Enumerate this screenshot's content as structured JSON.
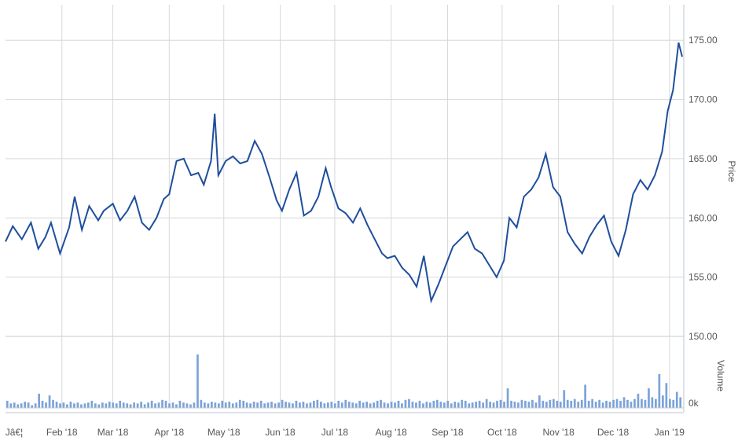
{
  "colors": {
    "line": "#1f4e9c",
    "volume": "#7ba3d9",
    "grid": "#d8d8d8",
    "axis": "#b8c6d6"
  },
  "chart_data": [
    {
      "type": "line",
      "ylabel": "Price",
      "ylim": [
        150,
        178
      ],
      "y_ticks": [
        "150.00",
        "155.00",
        "160.00",
        "165.00",
        "170.00",
        "175.00"
      ],
      "x_tick_labels": [
        "Jâ€¦",
        "Feb '18",
        "Mar '18",
        "Apr '18",
        "May '18",
        "Jun '18",
        "Jul '18",
        "Aug '18",
        "Sep '18",
        "Oct '18",
        "Nov '18",
        "Dec '18",
        "Jan '19"
      ],
      "grid": true,
      "series": [
        {
          "x": [
            "2018-01-01",
            "2018-01-05",
            "2018-01-10",
            "2018-01-15",
            "2018-01-19",
            "2018-01-23",
            "2018-01-26",
            "2018-01-31",
            "2018-02-05",
            "2018-02-08",
            "2018-02-12",
            "2018-02-16",
            "2018-02-21",
            "2018-02-24",
            "2018-03-01",
            "2018-03-05",
            "2018-03-09",
            "2018-03-13",
            "2018-03-17",
            "2018-03-21",
            "2018-03-25",
            "2018-03-29",
            "2018-04-01",
            "2018-04-05",
            "2018-04-09",
            "2018-04-13",
            "2018-04-17",
            "2018-04-20",
            "2018-04-24",
            "2018-04-26",
            "2018-04-28",
            "2018-05-02",
            "2018-05-06",
            "2018-05-10",
            "2018-05-14",
            "2018-05-18",
            "2018-05-22",
            "2018-05-26",
            "2018-05-30",
            "2018-06-02",
            "2018-06-06",
            "2018-06-10",
            "2018-06-14",
            "2018-06-18",
            "2018-06-22",
            "2018-06-26",
            "2018-06-29",
            "2018-07-03",
            "2018-07-07",
            "2018-07-11",
            "2018-07-15",
            "2018-07-19",
            "2018-07-23",
            "2018-07-27",
            "2018-07-30",
            "2018-08-03",
            "2018-08-07",
            "2018-08-11",
            "2018-08-15",
            "2018-08-19",
            "2018-08-23",
            "2018-08-27",
            "2018-08-31",
            "2018-09-04",
            "2018-09-08",
            "2018-09-12",
            "2018-09-16",
            "2018-09-20",
            "2018-09-24",
            "2018-09-28",
            "2018-10-02",
            "2018-10-05",
            "2018-10-09",
            "2018-10-13",
            "2018-10-17",
            "2018-10-21",
            "2018-10-25",
            "2018-10-29",
            "2018-11-02",
            "2018-11-06",
            "2018-11-10",
            "2018-11-14",
            "2018-11-18",
            "2018-11-22",
            "2018-11-26",
            "2018-11-30",
            "2018-12-04",
            "2018-12-08",
            "2018-12-12",
            "2018-12-16",
            "2018-12-20",
            "2018-12-24",
            "2018-12-28",
            "2018-12-31",
            "2019-01-03",
            "2019-01-06",
            "2019-01-08"
          ],
          "values": [
            158.0,
            159.3,
            158.2,
            159.6,
            157.4,
            158.4,
            159.6,
            157.0,
            159.2,
            161.8,
            159.0,
            161.0,
            159.8,
            160.6,
            161.2,
            159.8,
            160.6,
            161.8,
            159.6,
            159.0,
            160.0,
            161.6,
            162.0,
            164.8,
            165.0,
            163.6,
            163.8,
            162.8,
            164.8,
            168.8,
            163.6,
            164.8,
            165.2,
            164.6,
            164.8,
            166.5,
            165.4,
            163.5,
            161.5,
            160.6,
            162.4,
            163.8,
            160.2,
            160.6,
            161.8,
            164.2,
            162.6,
            160.8,
            160.4,
            159.6,
            160.8,
            159.4,
            158.2,
            157.0,
            156.6,
            156.8,
            155.8,
            155.2,
            154.2,
            156.8,
            153.0,
            154.4,
            156.0,
            157.6,
            158.2,
            158.8,
            157.4,
            157.0,
            156.0,
            155.0,
            156.4,
            160.0,
            159.2,
            161.8,
            162.4,
            163.4,
            165.4,
            162.6,
            161.8,
            158.8,
            157.8,
            157.0,
            158.4,
            159.4,
            160.2,
            158.0,
            156.8,
            159.0,
            162.0,
            163.2,
            162.4,
            163.6,
            165.6,
            169.0,
            170.8,
            174.8,
            173.6
          ]
        }
      ]
    },
    {
      "type": "bar",
      "ylabel": "Volume",
      "y_ticks": [
        "0k"
      ],
      "values": [
        0.8,
        0.5,
        0.6,
        0.4,
        0.5,
        0.7,
        0.6,
        0.3,
        0.5,
        1.6,
        0.8,
        0.6,
        1.4,
        0.9,
        0.7,
        0.5,
        0.6,
        0.4,
        0.7,
        0.5,
        0.6,
        0.4,
        0.5,
        0.6,
        0.8,
        0.5,
        0.4,
        0.6,
        0.5,
        0.7,
        0.6,
        0.5,
        0.8,
        0.6,
        0.5,
        0.4,
        0.6,
        0.5,
        0.7,
        0.4,
        0.6,
        0.8,
        0.5,
        0.6,
        0.9,
        0.8,
        0.5,
        0.6,
        0.4,
        0.8,
        0.6,
        0.5,
        0.4,
        0.6,
        6.0,
        0.9,
        0.6,
        0.5,
        0.7,
        0.6,
        0.5,
        0.8,
        0.6,
        0.7,
        0.5,
        0.6,
        0.9,
        0.8,
        0.6,
        0.5,
        0.7,
        0.6,
        0.8,
        0.5,
        0.6,
        0.7,
        0.5,
        0.6,
        0.9,
        0.7,
        0.6,
        0.5,
        0.8,
        0.6,
        0.7,
        0.5,
        0.6,
        0.8,
        0.9,
        0.7,
        0.5,
        0.6,
        0.7,
        0.5,
        0.8,
        0.6,
        0.9,
        0.7,
        0.6,
        0.5,
        0.8,
        0.6,
        0.7,
        0.5,
        0.6,
        0.8,
        0.9,
        0.6,
        0.5,
        0.7,
        0.6,
        0.8,
        0.5,
        0.9,
        1.0,
        0.7,
        0.6,
        0.8,
        0.5,
        0.7,
        0.6,
        0.8,
        0.9,
        0.7,
        0.6,
        0.8,
        0.5,
        0.7,
        0.6,
        0.9,
        0.8,
        0.5,
        0.6,
        0.7,
        0.8,
        0.6,
        1.0,
        0.7,
        0.6,
        0.8,
        0.9,
        0.7,
        2.2,
        0.8,
        0.7,
        0.6,
        0.9,
        0.8,
        0.7,
        0.9,
        0.6,
        1.4,
        0.8,
        0.7,
        0.9,
        1.0,
        0.8,
        0.7,
        2.0,
        0.9,
        0.8,
        1.0,
        0.7,
        0.9,
        2.6,
        0.8,
        1.0,
        0.7,
        0.9,
        0.6,
        0.8,
        0.7,
        0.9,
        1.0,
        0.8,
        1.2,
        0.9,
        0.7,
        1.0,
        1.6,
        1.0,
        0.9,
        2.2,
        1.2,
        1.0,
        3.8,
        1.4,
        2.8,
        1.0,
        0.9,
        1.8,
        1.2
      ]
    }
  ]
}
